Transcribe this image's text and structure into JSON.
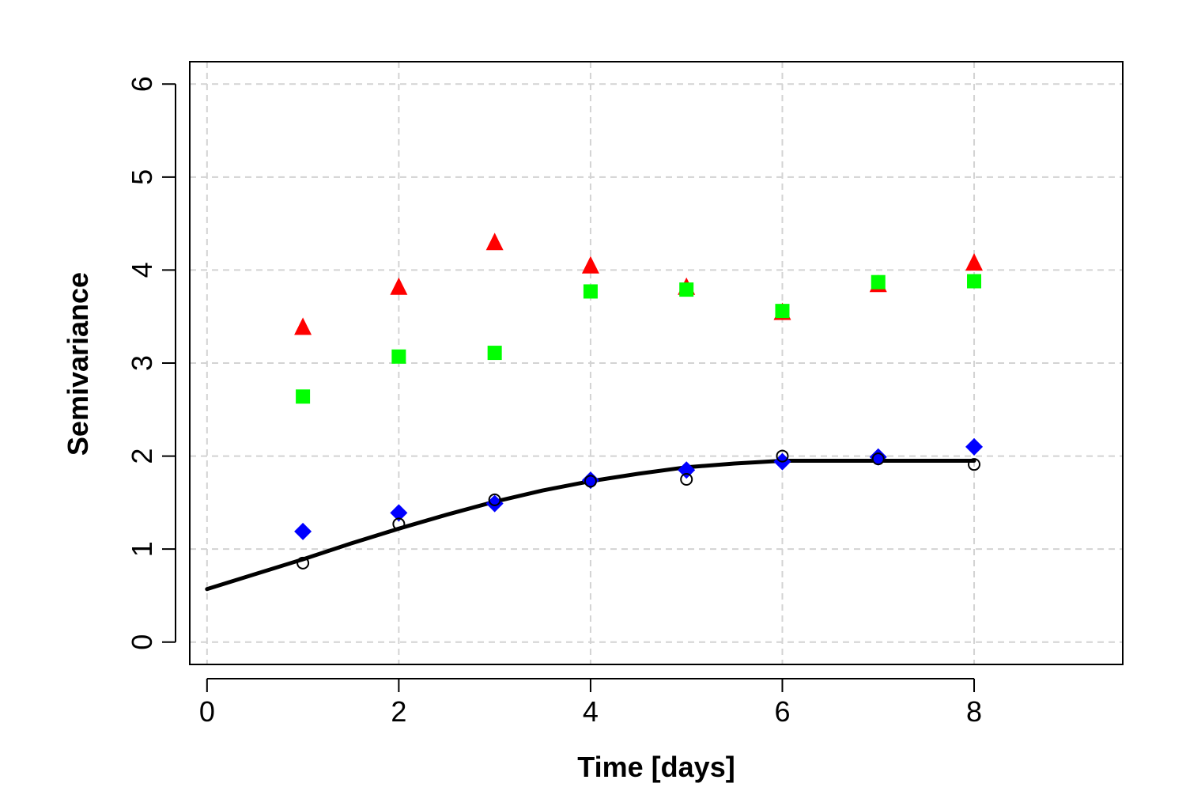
{
  "chart_data": {
    "type": "scatter",
    "xlabel": "Time [days]",
    "ylabel": "Semivariance",
    "xlim": [
      -0.18,
      9.55
    ],
    "ylim": [
      -0.24,
      6.24
    ],
    "x_ticks": [
      0,
      2,
      4,
      6,
      8
    ],
    "y_ticks": [
      0,
      1,
      2,
      3,
      4,
      5,
      6
    ],
    "grid": true,
    "series": [
      {
        "marker": "triangle",
        "color": "#ff0000",
        "points": [
          [
            1,
            3.38
          ],
          [
            2,
            3.81
          ],
          [
            3,
            4.29
          ],
          [
            4,
            4.04
          ],
          [
            5,
            3.81
          ],
          [
            6,
            3.54
          ],
          [
            7,
            3.84
          ],
          [
            8,
            4.07
          ]
        ]
      },
      {
        "marker": "square",
        "color": "#00ff00",
        "points": [
          [
            1,
            2.64
          ],
          [
            2,
            3.07
          ],
          [
            3,
            3.11
          ],
          [
            4,
            3.77
          ],
          [
            5,
            3.79
          ],
          [
            6,
            3.56
          ],
          [
            7,
            3.87
          ],
          [
            8,
            3.88
          ]
        ]
      },
      {
        "marker": "diamond",
        "color": "#0000ff",
        "points": [
          [
            1,
            1.19
          ],
          [
            2,
            1.39
          ],
          [
            3,
            1.49
          ],
          [
            4,
            1.74
          ],
          [
            5,
            1.85
          ],
          [
            6,
            1.94
          ],
          [
            7,
            1.99
          ],
          [
            8,
            2.1
          ]
        ]
      },
      {
        "marker": "open-circle",
        "color": "#000000",
        "points": [
          [
            1,
            0.85
          ],
          [
            2,
            1.27
          ],
          [
            3,
            1.53
          ],
          [
            4,
            1.73
          ],
          [
            5,
            1.75
          ],
          [
            6,
            2.0
          ],
          [
            7,
            1.97
          ],
          [
            8,
            1.91
          ]
        ]
      }
    ],
    "fitted_line": {
      "color": "#000000",
      "points": [
        [
          0,
          0.57
        ],
        [
          0.5,
          0.73
        ],
        [
          1,
          0.89
        ],
        [
          1.5,
          1.06
        ],
        [
          2,
          1.22
        ],
        [
          2.5,
          1.37
        ],
        [
          3,
          1.51
        ],
        [
          3.5,
          1.63
        ],
        [
          4,
          1.73
        ],
        [
          4.5,
          1.81
        ],
        [
          5,
          1.88
        ],
        [
          5.5,
          1.92
        ],
        [
          6,
          1.95
        ],
        [
          7,
          1.95
        ],
        [
          8,
          1.95
        ]
      ]
    }
  }
}
